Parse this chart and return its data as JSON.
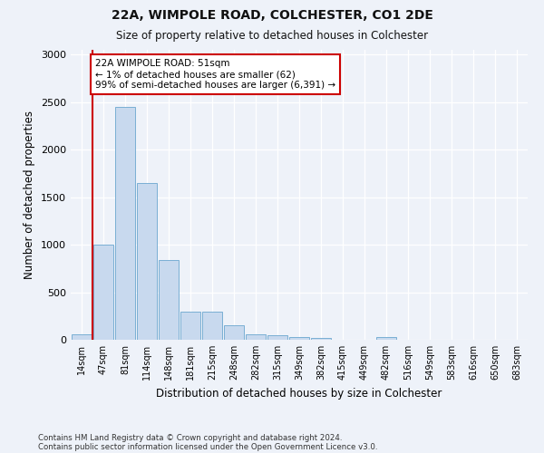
{
  "title1": "22A, WIMPOLE ROAD, COLCHESTER, CO1 2DE",
  "title2": "Size of property relative to detached houses in Colchester",
  "xlabel": "Distribution of detached houses by size in Colchester",
  "ylabel": "Number of detached properties",
  "categories": [
    "14sqm",
    "47sqm",
    "81sqm",
    "114sqm",
    "148sqm",
    "181sqm",
    "215sqm",
    "248sqm",
    "282sqm",
    "315sqm",
    "349sqm",
    "382sqm",
    "415sqm",
    "449sqm",
    "482sqm",
    "516sqm",
    "549sqm",
    "583sqm",
    "616sqm",
    "650sqm",
    "683sqm"
  ],
  "values": [
    55,
    1000,
    2450,
    1650,
    840,
    300,
    300,
    150,
    55,
    45,
    30,
    20,
    0,
    0,
    25,
    0,
    0,
    0,
    0,
    0,
    0
  ],
  "bar_color": "#c8d9ee",
  "bar_edge_color": "#7aafd4",
  "vline_color": "#cc0000",
  "annotation_text": "22A WIMPOLE ROAD: 51sqm\n← 1% of detached houses are smaller (62)\n99% of semi-detached houses are larger (6,391) →",
  "annotation_box_color": "#ffffff",
  "annotation_box_edge": "#cc0000",
  "ylim": [
    0,
    3050
  ],
  "yticks": [
    0,
    500,
    1000,
    1500,
    2000,
    2500,
    3000
  ],
  "footnote1": "Contains HM Land Registry data © Crown copyright and database right 2024.",
  "footnote2": "Contains public sector information licensed under the Open Government Licence v3.0.",
  "bg_color": "#eef2f9"
}
